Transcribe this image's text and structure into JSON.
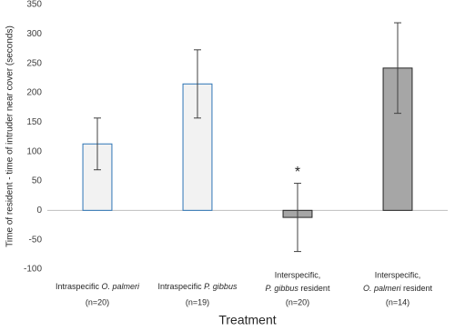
{
  "chart_data": {
    "type": "bar",
    "ylabel": "Time of resident - time of intruder near cover (seconds)",
    "xlabel": "Treatment",
    "categories": [
      [
        "Intraspecific O. palmeri",
        "(n=20)"
      ],
      [
        "Intraspecific P. gibbus",
        "(n=19)"
      ],
      [
        "Interspecific,",
        "P. gibbus resident",
        "(n=20)"
      ],
      [
        "Interspecific,",
        "O. palmeri resident",
        "(n=14)"
      ]
    ],
    "values": [
      113,
      215,
      -12,
      242
    ],
    "errors": [
      44,
      58,
      58,
      77
    ],
    "colors": [
      "#f2f2f2",
      "#f2f2f2",
      "#a6a6a6",
      "#a6a6a6"
    ],
    "edge_colors": [
      "#2e75b6",
      "#2e75b6",
      "#262626",
      "#262626"
    ],
    "annotations": [
      {
        "text": "*",
        "category": 2
      }
    ],
    "ylim": [
      -100,
      350
    ],
    "yticks": [
      -100,
      -50,
      0,
      50,
      100,
      150,
      200,
      250,
      300,
      350
    ],
    "grid": false
  }
}
